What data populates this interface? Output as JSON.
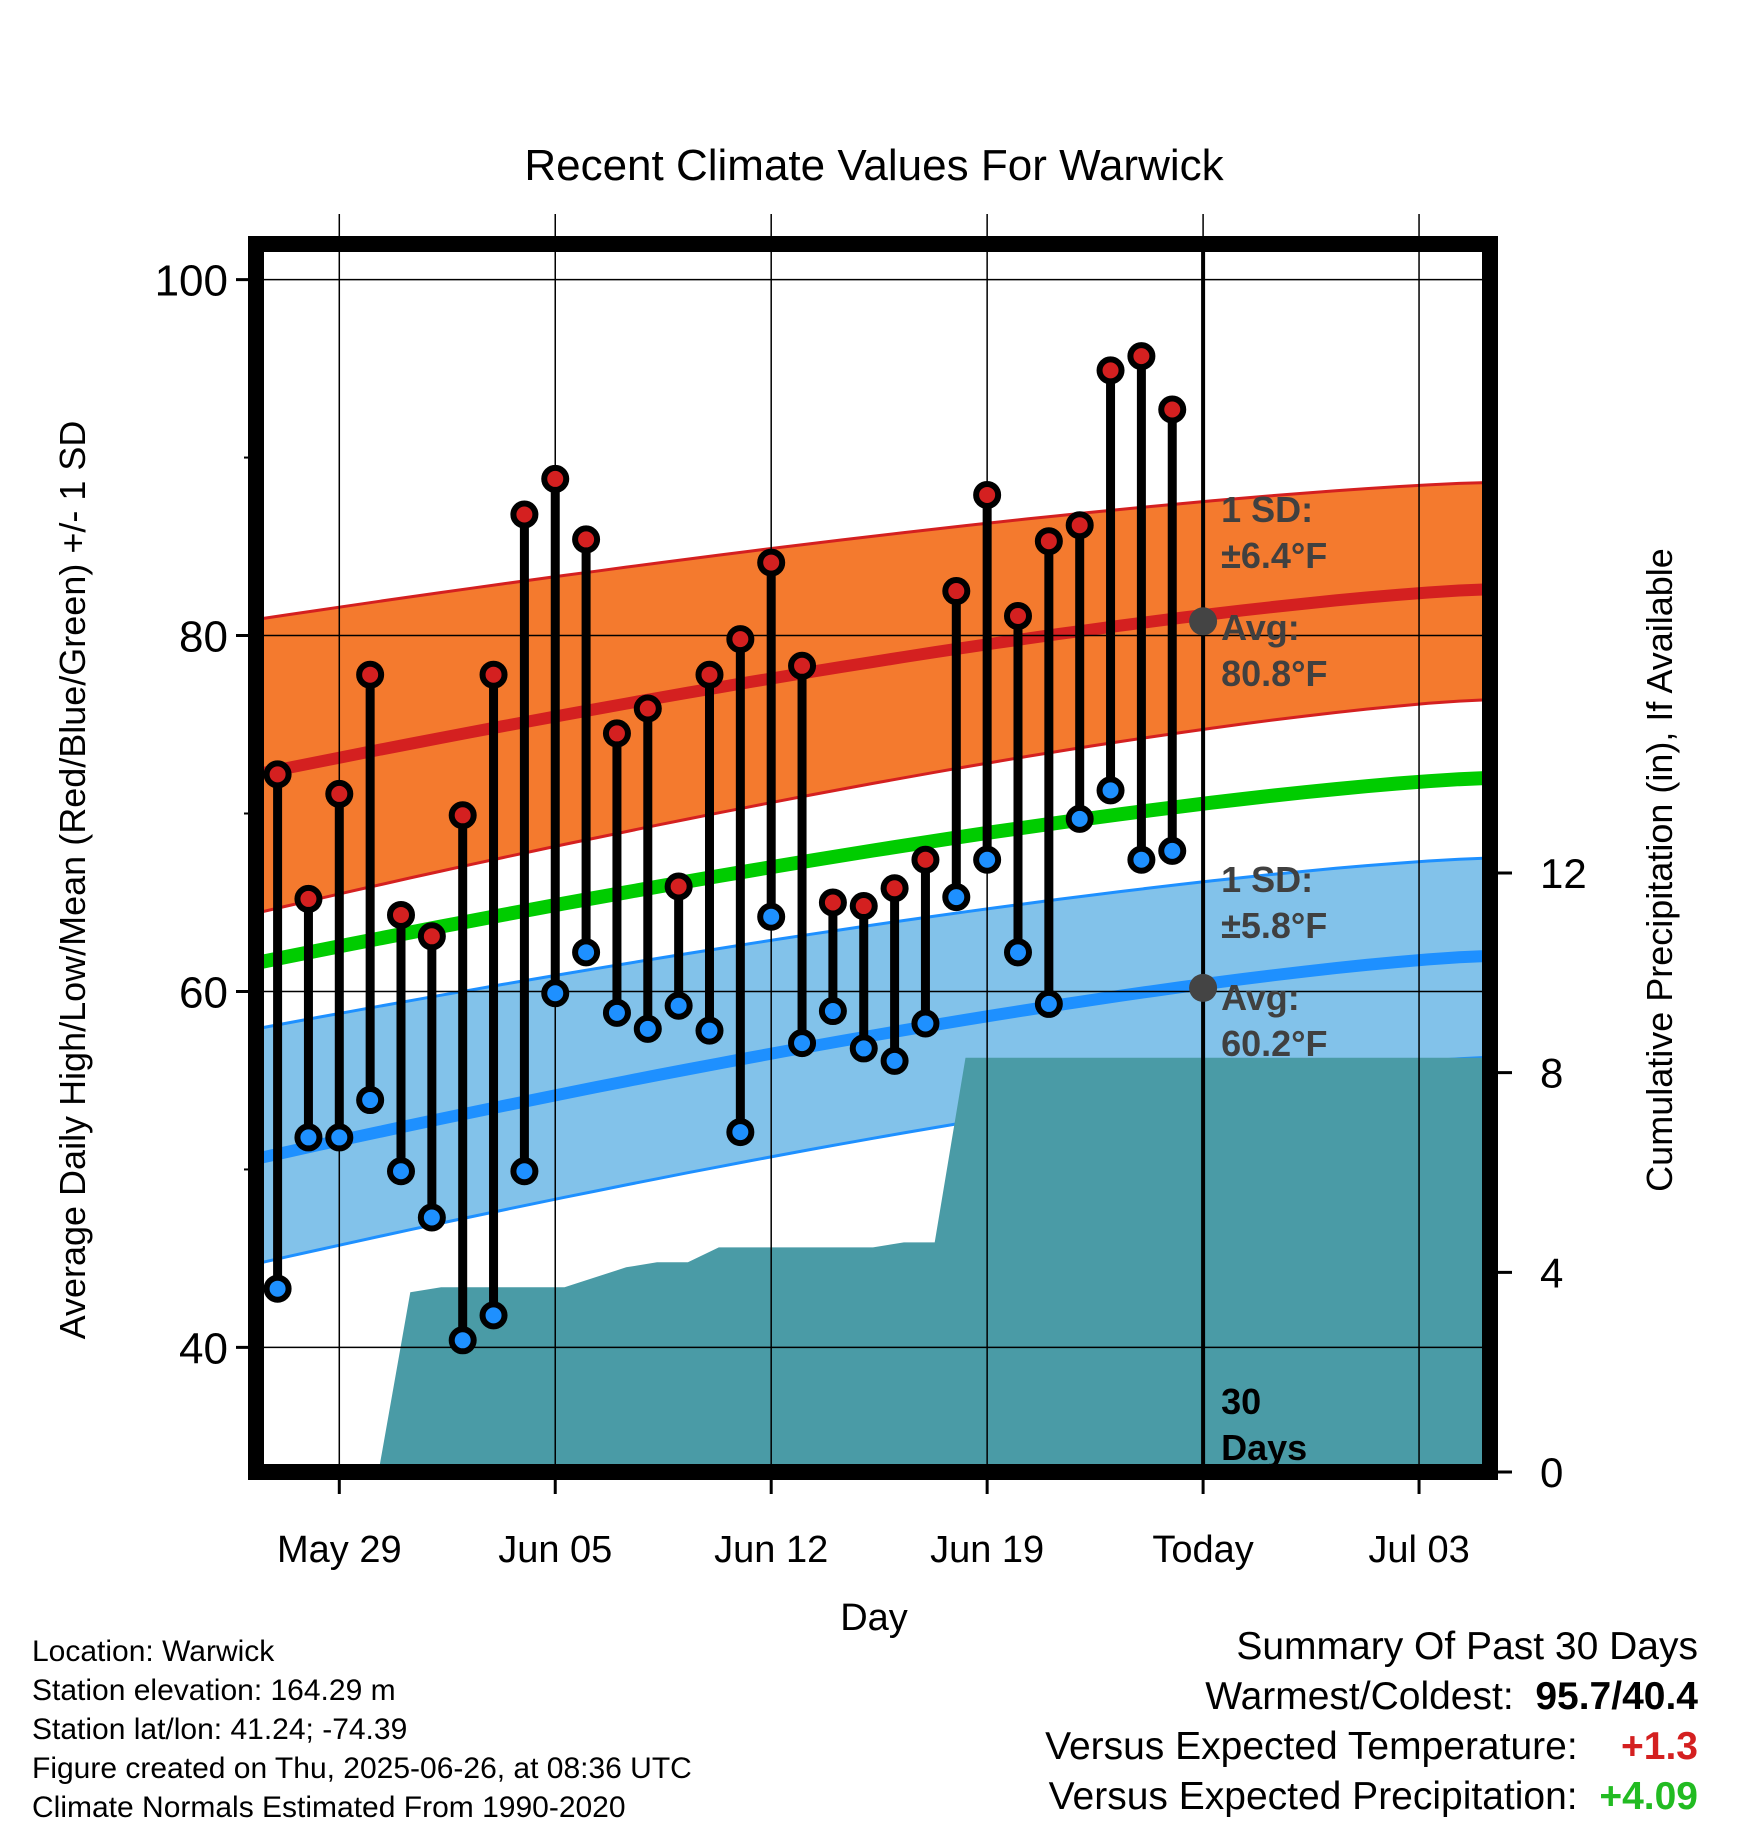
{
  "chart_data": {
    "type": "line",
    "title": "Recent Climate Values For Warwick",
    "xlabel": "Day",
    "ylabel": "Average Daily High/Low/Mean (Red/Blue/Green) +/- 1 SD",
    "y2label": "Cumulative Precipitation (in), If Available",
    "ylim": [
      33,
      102
    ],
    "y2lim": [
      0,
      24.6
    ],
    "yticks": [
      40,
      60,
      80,
      100
    ],
    "y2ticks": [
      0,
      4,
      8,
      12
    ],
    "xticks": [
      {
        "label": "May 29",
        "day": 3
      },
      {
        "label": "Jun 05",
        "day": 10
      },
      {
        "label": "Jun 12",
        "day": 17
      },
      {
        "label": "Jun 19",
        "day": 24
      },
      {
        "label": "Today",
        "day": 31
      },
      {
        "label": "Jul 03",
        "day": 38
      }
    ],
    "grid": true,
    "days": [
      1,
      2,
      3,
      4,
      5,
      6,
      7,
      8,
      9,
      10,
      11,
      12,
      13,
      14,
      15,
      16,
      17,
      18,
      19,
      20,
      21,
      22,
      23,
      24,
      25,
      26,
      27,
      28,
      29,
      30
    ],
    "series": [
      {
        "name": "High",
        "color": "#d42020",
        "values": [
          72.2,
          65.2,
          71.1,
          77.8,
          64.3,
          63.1,
          69.9,
          77.8,
          86.8,
          88.8,
          85.4,
          74.5,
          75.9,
          65.9,
          77.8,
          79.8,
          84.1,
          78.3,
          65.0,
          64.8,
          65.8,
          67.4,
          82.5,
          87.9,
          81.1,
          85.3,
          86.2,
          94.9,
          95.7,
          92.7
        ]
      },
      {
        "name": "Low",
        "color": "#1e90ff",
        "values": [
          43.3,
          51.8,
          51.8,
          53.9,
          49.9,
          47.3,
          40.4,
          41.8,
          49.9,
          59.9,
          62.2,
          58.8,
          57.9,
          59.2,
          57.8,
          52.1,
          64.2,
          57.1,
          58.9,
          56.8,
          56.1,
          58.2,
          65.3,
          67.4,
          62.2,
          59.3,
          69.7,
          71.3,
          67.4,
          67.9
        ]
      }
    ],
    "normals": {
      "start_day": 0.3,
      "end_day": 40.3,
      "high_avg": [
        72.2,
        82.6
      ],
      "high_upper": [
        80.9,
        88.6
      ],
      "high_lower": [
        64.4,
        76.4
      ],
      "mean_avg": [
        61.6,
        72.0
      ],
      "low_avg": [
        50.6,
        62.0
      ],
      "low_upper": [
        57.9,
        67.5
      ],
      "low_lower": [
        44.7,
        56.3
      ],
      "high_color": "#d42020",
      "high_band_color": "#f47a2e",
      "mean_color": "#00cc00",
      "low_color": "#1e90ff",
      "low_band_color": "#82c2ea"
    },
    "precip_cumulative": [
      [
        0.3,
        0
      ],
      [
        2.3,
        0
      ],
      [
        3.3,
        0.1
      ],
      [
        4.3,
        0.1
      ],
      [
        5.3,
        3.6
      ],
      [
        6.3,
        3.7
      ],
      [
        7.3,
        3.7
      ],
      [
        8.3,
        3.7
      ],
      [
        9.3,
        3.7
      ],
      [
        10.3,
        3.7
      ],
      [
        11.3,
        3.9
      ],
      [
        12.3,
        4.1
      ],
      [
        13.3,
        4.2
      ],
      [
        14.3,
        4.2
      ],
      [
        15.3,
        4.5
      ],
      [
        16.3,
        4.5
      ],
      [
        17.3,
        4.5
      ],
      [
        18.3,
        4.5
      ],
      [
        19.3,
        4.5
      ],
      [
        20.3,
        4.5
      ],
      [
        21.3,
        4.6
      ],
      [
        22.3,
        4.6
      ],
      [
        23.3,
        8.3
      ],
      [
        24.3,
        8.3
      ],
      [
        25.3,
        8.3
      ],
      [
        26.3,
        8.3
      ],
      [
        27.3,
        8.3
      ],
      [
        28.3,
        8.3
      ],
      [
        40.3,
        8.3
      ]
    ],
    "precip_color": "#4a9ba6",
    "today_day": 31,
    "annotations": {
      "high_sd_label": "1 SD:",
      "high_sd_value": "±6.4°F",
      "high_avg_label": "Avg:",
      "high_avg_value": "80.8°F",
      "high_avg": 80.8,
      "low_sd_label": "1 SD:",
      "low_sd_value": "±5.8°F",
      "low_avg_label": "Avg:",
      "low_avg_value": "60.2°F",
      "low_avg": 60.2,
      "days_label_1": "30",
      "days_label_2": "Days"
    }
  },
  "info": {
    "location": "Location: Warwick",
    "elevation": "Station elevation: 164.29 m",
    "latlon": "Station lat/lon: 41.24; -74.39",
    "created": "Figure created on Thu, 2025-06-26, at 08:36 UTC",
    "normals": "Climate Normals Estimated From 1990-2020"
  },
  "summary": {
    "title": "Summary Of Past 30 Days",
    "warm_cold_label": "Warmest/Coldest:",
    "warm_cold_value": "95.7/40.4",
    "temp_label": "Versus Expected Temperature:",
    "temp_value": "+1.3",
    "temp_color": "#d42020",
    "precip_label": "Versus Expected Precipitation:",
    "precip_value": "+4.09",
    "precip_color": "#22bb22"
  }
}
